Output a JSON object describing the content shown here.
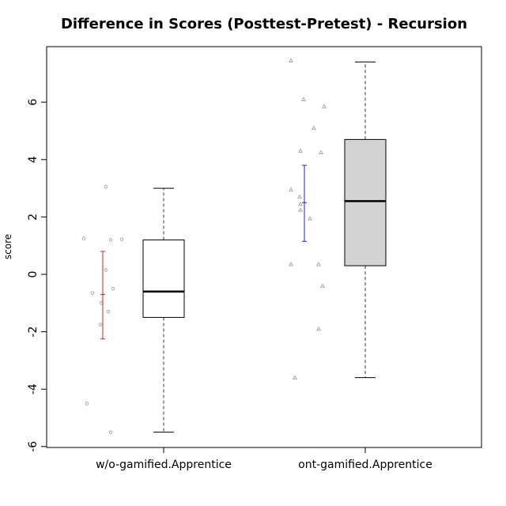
{
  "chart_data": {
    "type": "box",
    "title": "Difference in Scores (Posttest-Pretest) - Recursion",
    "xlabel": "",
    "ylabel": "score",
    "ylim": [
      -6,
      7.8
    ],
    "yticks": [
      -6,
      -4,
      -2,
      0,
      2,
      4,
      6
    ],
    "categories": [
      "w/o-gamified.Apprentice",
      "ont-gamified.Apprentice"
    ],
    "boxes": [
      {
        "category": "w/o-gamified.Apprentice",
        "min": -5.5,
        "q1": -1.5,
        "median": -0.6,
        "q3": 1.2,
        "max": 3.0,
        "fill": "#ffffff"
      },
      {
        "category": "ont-gamified.Apprentice",
        "min": -3.6,
        "q1": 0.3,
        "median": 2.55,
        "q3": 4.7,
        "max": 7.4,
        "fill": "#d3d3d3"
      }
    ],
    "points": [
      {
        "category": "w/o-gamified.Apprentice",
        "marker": "circle",
        "values": [
          3.05,
          1.25,
          1.2,
          1.22,
          0.15,
          -0.5,
          -0.65,
          -1.0,
          -1.3,
          -1.75,
          -4.5,
          -5.5
        ]
      },
      {
        "category": "ont-gamified.Apprentice",
        "marker": "triangle",
        "values": [
          7.45,
          6.1,
          5.85,
          5.1,
          4.3,
          4.25,
          2.95,
          2.7,
          2.45,
          2.25,
          1.95,
          0.35,
          0.35,
          -0.4,
          -1.9,
          -3.6
        ]
      }
    ],
    "error_bars": [
      {
        "category": "w/o-gamified.Apprentice",
        "center": -0.7,
        "low": -2.25,
        "high": 0.8,
        "color": "#e02020"
      },
      {
        "category": "ont-gamified.Apprentice",
        "center": 2.5,
        "low": 1.15,
        "high": 3.8,
        "color": "#2020c0"
      }
    ],
    "point_color": "#a0a0a0",
    "grid": false,
    "legend": "none"
  }
}
